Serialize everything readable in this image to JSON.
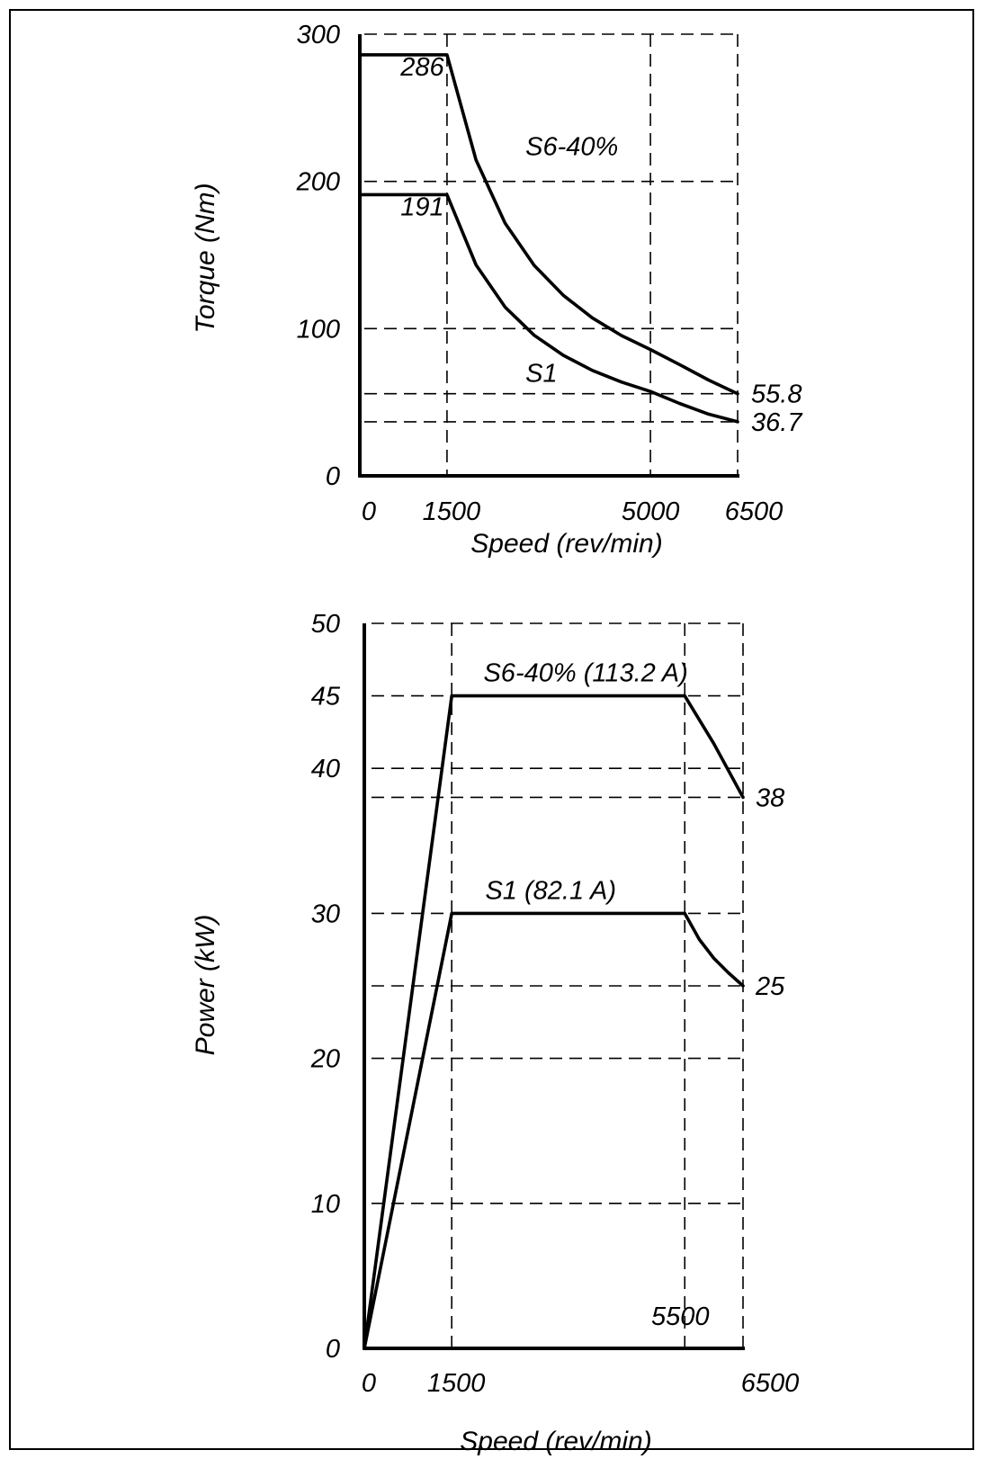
{
  "chart_data": [
    {
      "type": "line",
      "xlabel": "Speed (rev/min)",
      "ylabel": "Torque (Nm)",
      "xlim": [
        0,
        6500
      ],
      "ylim": [
        0,
        300
      ],
      "x_ticks": [
        "0",
        "1500",
        "5000",
        "6500"
      ],
      "y_ticks": [
        "0",
        "100",
        "200",
        "300"
      ],
      "x_gridlines": [
        1500,
        5000,
        6500
      ],
      "y_gridlines": [
        36.7,
        55.8,
        100,
        200,
        300
      ],
      "grid": "dashed",
      "series": [
        {
          "name": "S6-40%",
          "x": [
            0,
            1500,
            2000,
            2500,
            3000,
            3500,
            4000,
            4500,
            5000,
            5500,
            6000,
            6500
          ],
          "y": [
            286,
            286,
            214.5,
            171.6,
            143,
            122.6,
            107.3,
            95.3,
            85.8,
            75.6,
            65.1,
            55.8
          ]
        },
        {
          "name": "S1",
          "x": [
            0,
            1500,
            2000,
            2500,
            3000,
            3500,
            4000,
            4500,
            5000,
            5500,
            6000,
            6500
          ],
          "y": [
            191,
            191,
            143.3,
            114.6,
            95.5,
            81.9,
            71.6,
            63.7,
            57.3,
            49.2,
            41.9,
            36.7
          ]
        }
      ],
      "annotations": [
        {
          "text": "286",
          "x": 700,
          "y": 278
        },
        {
          "text": "191",
          "x": 700,
          "y": 183
        },
        {
          "text": "S6-40%",
          "x": 2850,
          "y": 224
        },
        {
          "text": "S1",
          "x": 2850,
          "y": 70
        },
        {
          "text": "55.8",
          "x": 6650,
          "y": 55.8
        },
        {
          "text": "36.7",
          "x": 6650,
          "y": 36.7
        }
      ]
    },
    {
      "type": "line",
      "xlabel": "Speed (rev/min)",
      "ylabel": "Power (kW)",
      "xlim": [
        0,
        6500
      ],
      "ylim": [
        0,
        50
      ],
      "x_ticks": [
        "0",
        "1500",
        "6500"
      ],
      "y_ticks": [
        "0",
        "10",
        "20",
        "30",
        "40",
        "45",
        "50"
      ],
      "x_gridlines": [
        1500,
        5500,
        6500
      ],
      "y_gridlines": [
        10,
        20,
        25,
        30,
        38,
        40,
        45,
        50
      ],
      "grid": "dashed",
      "series": [
        {
          "name": "S6-40% (113.2 A)",
          "x": [
            0,
            1500,
            5500,
            6000,
            6500
          ],
          "y": [
            0,
            45,
            45,
            41.7,
            38
          ]
        },
        {
          "name": "S1 (82.1 A)",
          "x": [
            0,
            1500,
            5500,
            5750,
            6000,
            6250,
            6500
          ],
          "y": [
            0,
            30,
            30,
            28.2,
            26.9,
            25.9,
            25
          ]
        }
      ],
      "annotations": [
        {
          "text": "38",
          "x": 6650,
          "y": 38
        },
        {
          "text": "25",
          "x": 6650,
          "y": 25
        },
        {
          "text": "5500",
          "x": 5500,
          "y": 1.6
        }
      ]
    }
  ]
}
